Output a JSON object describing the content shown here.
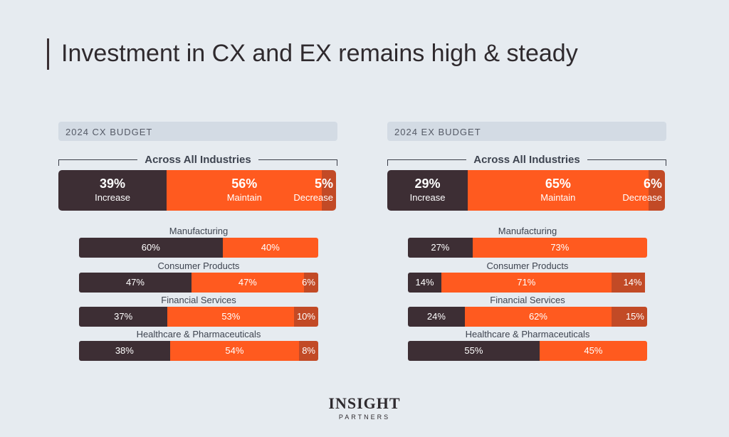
{
  "title": "Investment in CX and EX remains high & steady",
  "colors": {
    "increase": "#3d2e34",
    "maintain": "#ff5a1f",
    "decrease": "#c24a26"
  },
  "logo": {
    "main": "INSIGHT",
    "sub": "PARTNERS"
  },
  "chart_data": [
    {
      "type": "bar",
      "title": "2024 CX BUDGET",
      "group_title": "Across All Industries",
      "overall": {
        "increase": {
          "value": 39,
          "label": "39%",
          "name": "Increase"
        },
        "maintain": {
          "value": 56,
          "label": "56%",
          "name": "Maintain"
        },
        "decrease": {
          "value": 5,
          "label": "5%",
          "name": "Decrease"
        }
      },
      "categories": [
        "Manufacturing",
        "Consumer Products",
        "Financial Services",
        "Healthcare & Pharmaceuticals"
      ],
      "series": [
        {
          "key": "increase",
          "values": [
            60,
            47,
            37,
            38
          ],
          "labels": [
            "60%",
            "47%",
            "37%",
            "38%"
          ]
        },
        {
          "key": "maintain",
          "values": [
            40,
            47,
            53,
            54
          ],
          "labels": [
            "40%",
            "47%",
            "53%",
            "54%"
          ]
        },
        {
          "key": "decrease",
          "values": [
            0,
            6,
            10,
            8
          ],
          "labels": [
            "",
            "6%",
            "10%",
            "8%"
          ]
        }
      ]
    },
    {
      "type": "bar",
      "title": "2024 EX BUDGET",
      "group_title": "Across All Industries",
      "overall": {
        "increase": {
          "value": 29,
          "label": "29%",
          "name": "Increase"
        },
        "maintain": {
          "value": 65,
          "label": "65%",
          "name": "Maintain"
        },
        "decrease": {
          "value": 6,
          "label": "6%",
          "name": "Decrease"
        }
      },
      "categories": [
        "Manufacturing",
        "Consumer Products",
        "Financial Services",
        "Healthcare & Pharmaceuticals"
      ],
      "series": [
        {
          "key": "increase",
          "values": [
            27,
            14,
            24,
            55
          ],
          "labels": [
            "27%",
            "14%",
            "24%",
            "55%"
          ]
        },
        {
          "key": "maintain",
          "values": [
            73,
            71,
            62,
            45
          ],
          "labels": [
            "73%",
            "71%",
            "62%",
            "45%"
          ]
        },
        {
          "key": "decrease",
          "values": [
            0,
            14,
            15,
            0
          ],
          "labels": [
            "",
            "14%",
            "15%",
            ""
          ]
        }
      ]
    }
  ]
}
